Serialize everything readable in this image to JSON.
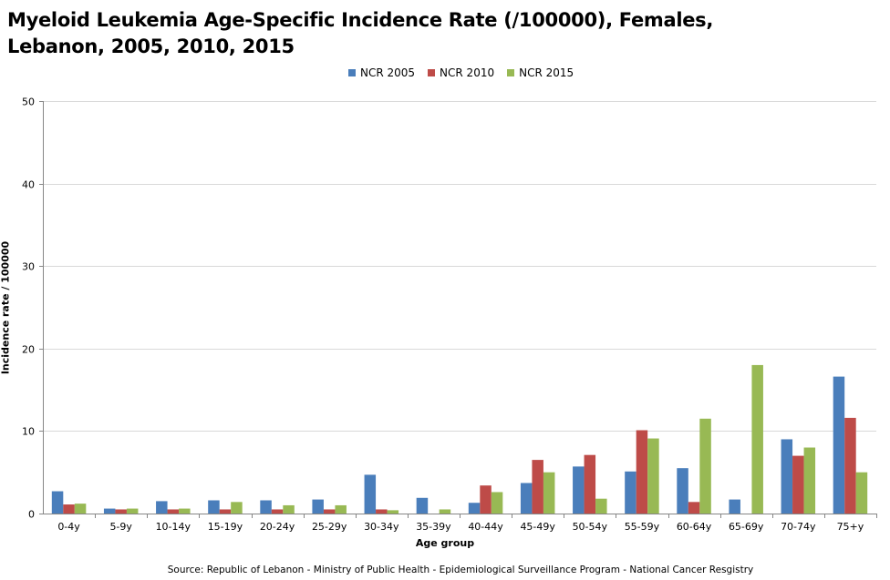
{
  "chart_data": {
    "type": "bar",
    "title_line1": "Myeloid Leukemia Age-Specific Incidence Rate (/100000), Females,",
    "title_line2": "Lebanon, 2005, 2010, 2015",
    "xlabel": "Age group",
    "ylabel": "Incidence rate / 100000",
    "source": "Source: Republic of Lebanon - Ministry of Public Health - Epidemiological Surveillance Program - National Cancer Resgistry",
    "ylim": [
      0,
      50
    ],
    "yticks": [
      "0",
      "10",
      "20",
      "30",
      "40",
      "50"
    ],
    "grid": true,
    "legend_position": "top",
    "categories": [
      "0-4y",
      "5-9y",
      "10-14y",
      "15-19y",
      "20-24y",
      "25-29y",
      "30-34y",
      "35-39y",
      "40-44y",
      "45-49y",
      "50-54y",
      "55-59y",
      "60-64y",
      "65-69y",
      "70-74y",
      "75+y"
    ],
    "series": [
      {
        "name": "NCR 2005",
        "color": "#4a7ebb",
        "values": [
          2.7,
          0.6,
          1.5,
          1.6,
          1.6,
          1.7,
          4.7,
          1.9,
          1.3,
          3.7,
          5.7,
          5.1,
          5.5,
          1.7,
          9.0,
          16.6
        ]
      },
      {
        "name": "NCR 2010",
        "color": "#be4b48",
        "values": [
          1.1,
          0.5,
          0.5,
          0.5,
          0.5,
          0.5,
          0.5,
          0.0,
          3.4,
          6.5,
          7.1,
          10.1,
          1.4,
          0.0,
          7.0,
          11.6
        ]
      },
      {
        "name": "NCR 2015",
        "color": "#98b954",
        "values": [
          1.2,
          0.6,
          0.6,
          1.4,
          1.0,
          1.0,
          0.4,
          0.5,
          2.6,
          5.0,
          1.8,
          9.1,
          11.5,
          18.0,
          8.0,
          5.0
        ]
      }
    ]
  }
}
